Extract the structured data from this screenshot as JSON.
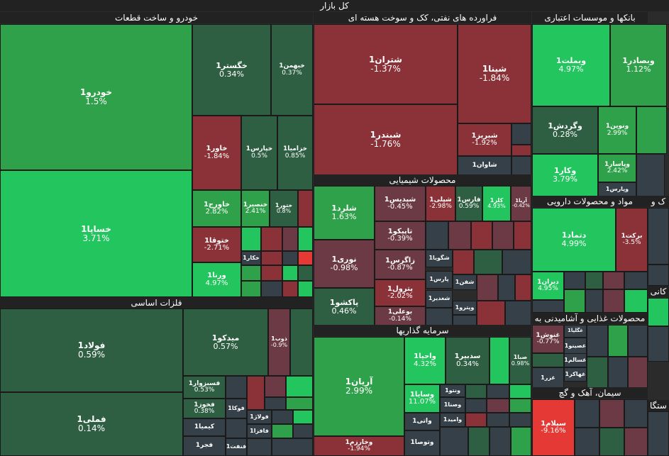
{
  "title": "کل بازار",
  "colors": {
    "strong_green": "#22c55e",
    "green": "#2fa14a",
    "dark_green": "#2f5f43",
    "neutral": "#354048",
    "dark_red": "#6b3a44",
    "red": "#8b3238",
    "strong_red": "#e53935"
  },
  "chart_data": {
    "type": "treemap",
    "sectors": [
      {
        "name": "خودرو و ساخت قطعات",
        "items": [
          {
            "name": "خودرو1",
            "change": "1.5%"
          },
          {
            "name": "خساپا1",
            "change": "3.71%"
          },
          {
            "name": "خگستر1",
            "change": "0.34%"
          },
          {
            "name": "خبهمن1",
            "change": "0.37%"
          },
          {
            "name": "خاور1",
            "change": "-1.84%"
          },
          {
            "name": "خپارس1",
            "change": "0.5%"
          },
          {
            "name": "خزامیا1",
            "change": "0.85%"
          },
          {
            "name": "خاورج1",
            "change": "2.82%"
          },
          {
            "name": "خنصیر1",
            "change": "2.41%"
          },
          {
            "name": "ختور1",
            "change": "0.8%"
          },
          {
            "name": "ختوقا1",
            "change": "-2.71%"
          },
          {
            "name": "ورنا1",
            "change": "4.97%"
          },
          {
            "name": "خکار1",
            "change": ""
          }
        ]
      },
      {
        "name": "فلزات اساسی",
        "items": [
          {
            "name": "فولاد1",
            "change": "0.59%"
          },
          {
            "name": "فملی1",
            "change": "0.14%"
          },
          {
            "name": "میدکو1",
            "change": "0.57%"
          },
          {
            "name": "ذوب1",
            "change": "-0.9%"
          },
          {
            "name": "فسبزوار1",
            "change": "0.53%"
          },
          {
            "name": "فخوز1",
            "change": "0.38%"
          },
          {
            "name": "فوکا1",
            "change": ""
          },
          {
            "name": "کیمیا1",
            "change": ""
          },
          {
            "name": "فولاژ1",
            "change": ""
          },
          {
            "name": "فافزا1",
            "change": ""
          },
          {
            "name": "فجر1",
            "change": ""
          },
          {
            "name": "فنفت1",
            "change": ""
          }
        ]
      },
      {
        "name": "فراورده های نفتی، کک و سوخت هسته ای",
        "items": [
          {
            "name": "شتران1",
            "change": "-1.37%"
          },
          {
            "name": "شپنا1",
            "change": "-1.84%"
          },
          {
            "name": "شبندر1",
            "change": "-1.76%"
          },
          {
            "name": "شبریز1",
            "change": "-1.92%"
          },
          {
            "name": "شاوان1",
            "change": ""
          }
        ]
      },
      {
        "name": "محصولات شیمیایی",
        "items": [
          {
            "name": "شلرد1",
            "change": "1.63%"
          },
          {
            "name": "شپدیس1",
            "change": "-0.45%"
          },
          {
            "name": "شپلی1",
            "change": "-2.98%"
          },
          {
            "name": "فارس1",
            "change": "0.59%"
          },
          {
            "name": "کلر1",
            "change": "4.93%"
          },
          {
            "name": "آریا1",
            "change": "-0.42%"
          },
          {
            "name": "تاپیکو1",
            "change": "-0.39%"
          },
          {
            "name": "نوری1",
            "change": "-0.98%"
          },
          {
            "name": "زاگرس1",
            "change": "-0.87%"
          },
          {
            "name": "پاکشو1",
            "change": "0.46%"
          },
          {
            "name": "پترول1",
            "change": "-2.02%"
          },
          {
            "name": "بوعلی1",
            "change": "-0.14%"
          },
          {
            "name": "شگویا1",
            "change": ""
          },
          {
            "name": "پارس1",
            "change": ""
          },
          {
            "name": "شفن1",
            "change": ""
          },
          {
            "name": "شغدیر1",
            "change": ""
          },
          {
            "name": "وپترو1",
            "change": ""
          }
        ]
      },
      {
        "name": "سرمایه گذاریها",
        "items": [
          {
            "name": "آریان1",
            "change": "2.99%"
          },
          {
            "name": "واحیا1",
            "change": "4.32%"
          },
          {
            "name": "سدبیر1",
            "change": "0.34%"
          },
          {
            "name": "صبا1",
            "change": "0.98%"
          },
          {
            "name": "وسایا1",
            "change": "11.07%"
          },
          {
            "name": "ونتو1",
            "change": ""
          },
          {
            "name": "وصنا1",
            "change": ""
          },
          {
            "name": "وامید1",
            "change": ""
          },
          {
            "name": "واتی1",
            "change": ""
          },
          {
            "name": "وخارزم1",
            "change": "-1.94%"
          },
          {
            "name": "وتوصا1",
            "change": ""
          }
        ]
      },
      {
        "name": "بانکها و موسسات اعتباری",
        "items": [
          {
            "name": "وبملت1",
            "change": "4.97%"
          },
          {
            "name": "وبصادر1",
            "change": "1.12%"
          },
          {
            "name": "وگردش1",
            "change": "0.28%"
          },
          {
            "name": "ونوین1",
            "change": "2.99%"
          },
          {
            "name": "وکار1",
            "change": "3.79%"
          },
          {
            "name": "وپاسار1",
            "change": "2.42%"
          },
          {
            "name": "وپارس1",
            "change": ""
          }
        ]
      },
      {
        "name": "مواد و محصولات دارویی",
        "items": [
          {
            "name": "دتماد1",
            "change": "4.99%"
          },
          {
            "name": "برکت1",
            "change": "-3.5%"
          },
          {
            "name": "دیران1",
            "change": "4.95%"
          }
        ]
      },
      {
        "name": "محصولات غذایی و آشامیدنی به",
        "items": [
          {
            "name": "غنوش1",
            "change": "-0.77%"
          },
          {
            "name": "غگلپا1",
            "change": ""
          },
          {
            "name": "غصینو1",
            "change": ""
          },
          {
            "name": "غسالم1",
            "change": ""
          },
          {
            "name": "غهاکر1",
            "change": ""
          },
          {
            "name": "غزر1",
            "change": ""
          }
        ]
      },
      {
        "name": "سیمان، آهک و گچ",
        "items": [
          {
            "name": "سیلام1",
            "change": "-9.16%"
          }
        ]
      },
      {
        "name": "ک و",
        "items": []
      },
      {
        "name": "کانی",
        "items": []
      },
      {
        "name": "ستگا",
        "items": []
      }
    ]
  }
}
